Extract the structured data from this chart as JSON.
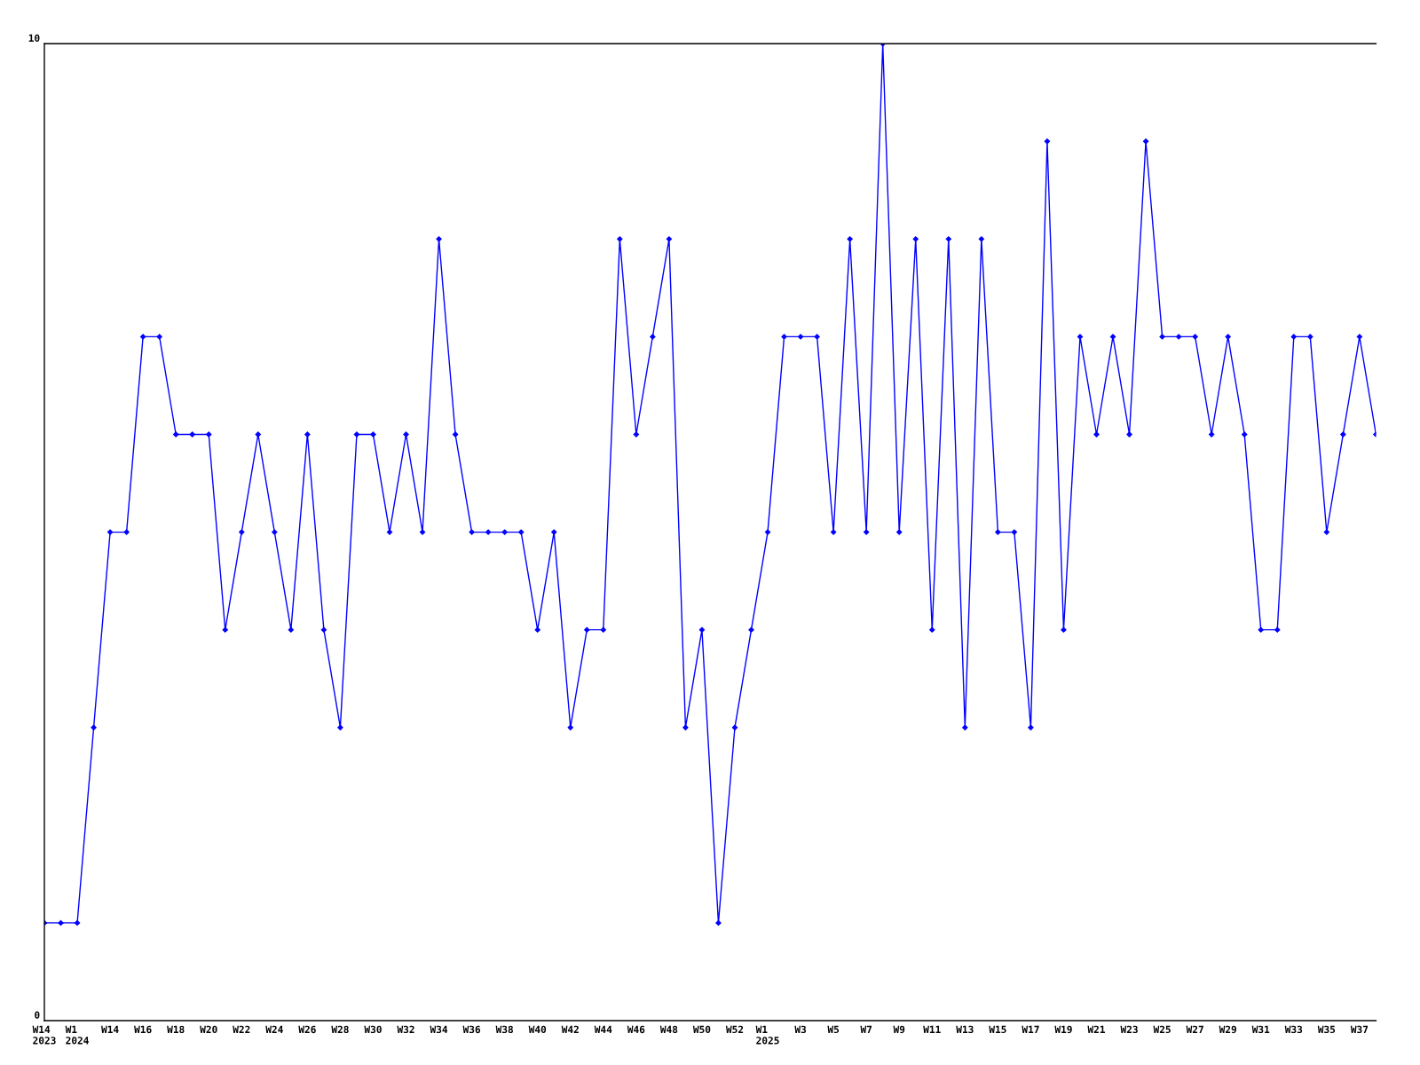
{
  "chart_data": {
    "type": "line",
    "categories": [
      "W14\n2023",
      null,
      "W1\n2024",
      null,
      "W14",
      null,
      "W16",
      null,
      "W18",
      null,
      "W20",
      null,
      "W22",
      null,
      "W24",
      null,
      "W26",
      null,
      "W28",
      null,
      "W30",
      null,
      "W32",
      null,
      "W34",
      null,
      "W36",
      null,
      "W38",
      null,
      "W40",
      null,
      "W42",
      null,
      "W44",
      null,
      "W46",
      null,
      "W48",
      null,
      "W50",
      null,
      "W52",
      null,
      "W1\n2025",
      null,
      "W3",
      null,
      "W5",
      null,
      "W7",
      null,
      "W9",
      null,
      "W11",
      null,
      "W13",
      null,
      "W15",
      null,
      "W17",
      null,
      "W19",
      null,
      "W21",
      null,
      "W23",
      null,
      "W25",
      null,
      "W27",
      null,
      "W29",
      null,
      "W31",
      null,
      "W33",
      null,
      "W35",
      null,
      "W37",
      null
    ],
    "values": [
      1,
      1,
      1,
      3,
      5,
      5,
      7,
      7,
      6,
      6,
      6,
      4,
      5,
      6,
      5,
      4,
      6,
      4,
      3,
      6,
      6,
      5,
      6,
      5,
      8,
      6,
      5,
      5,
      5,
      5,
      4,
      5,
      3,
      4,
      4,
      8,
      6,
      7,
      8,
      3,
      4,
      1,
      3,
      4,
      5,
      7,
      7,
      7,
      5,
      8,
      5,
      10,
      5,
      8,
      4,
      8,
      3,
      8,
      5,
      5,
      3,
      9,
      4,
      7,
      6,
      7,
      6,
      9,
      7,
      7,
      7,
      6,
      7,
      6,
      4,
      4,
      7,
      7,
      5,
      6,
      7,
      6
    ],
    "color": "#0000ff",
    "marker": "diamond",
    "line_style": "solid",
    "ylim": [
      0,
      10
    ],
    "yticks": [
      0,
      10
    ],
    "grid": false,
    "legend": false
  }
}
